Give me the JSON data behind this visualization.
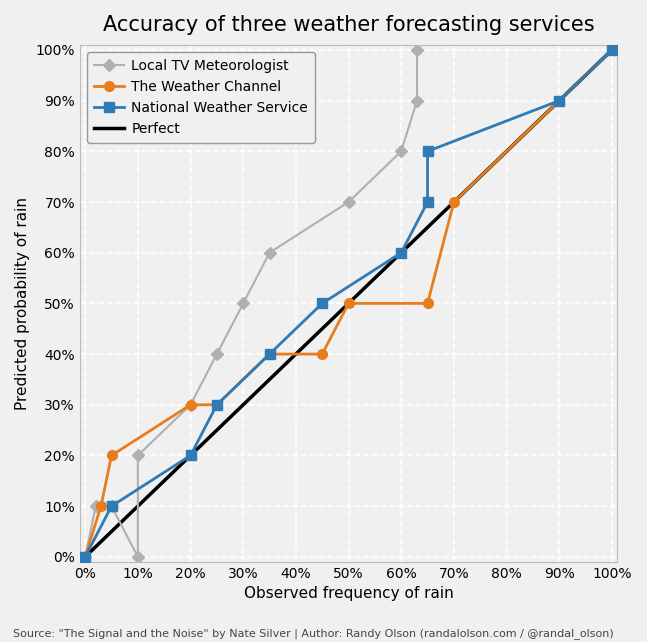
{
  "title": "Accuracy of three weather forecasting services",
  "xlabel": "Observed frequency of rain",
  "ylabel": "Predicted probability of rain",
  "source_text": "Source: \"The Signal and the Noise\" by Nate Silver | Author: Randy Olson (randalolson.com / @randal_olson)",
  "local_tv": {
    "x": [
      0,
      2,
      5,
      10,
      10,
      20,
      25,
      30,
      35,
      50,
      60,
      63,
      63
    ],
    "y": [
      0,
      10,
      10,
      0,
      20,
      30,
      40,
      50,
      60,
      70,
      80,
      90,
      100
    ],
    "color": "#b0b0b0",
    "label": "Local TV Meteorologist",
    "marker": "D",
    "markersize": 6,
    "linewidth": 1.5,
    "zorder": 2
  },
  "weather_channel": {
    "x": [
      0,
      3,
      5,
      20,
      25,
      35,
      45,
      50,
      65,
      70,
      90,
      100
    ],
    "y": [
      0,
      10,
      20,
      30,
      30,
      40,
      40,
      50,
      50,
      70,
      90,
      100
    ],
    "color": "#e87d1e",
    "label": "The Weather Channel",
    "marker": "o",
    "markersize": 7,
    "linewidth": 2,
    "zorder": 3
  },
  "nws": {
    "x": [
      0,
      5,
      20,
      25,
      35,
      45,
      60,
      65,
      65,
      90,
      100
    ],
    "y": [
      0,
      10,
      20,
      30,
      40,
      50,
      60,
      70,
      80,
      90,
      100
    ],
    "color": "#2e7bb5",
    "label": "National Weather Service",
    "marker": "s",
    "markersize": 7,
    "linewidth": 2,
    "zorder": 3
  },
  "perfect": {
    "x": [
      0,
      100
    ],
    "y": [
      0,
      100
    ],
    "color": "#000000",
    "label": "Perfect",
    "linewidth": 2.5,
    "zorder": 1
  },
  "xlim": [
    -1,
    101
  ],
  "ylim": [
    -1,
    101
  ],
  "xticks": [
    0,
    10,
    20,
    30,
    40,
    50,
    60,
    70,
    80,
    90,
    100
  ],
  "yticks": [
    0,
    10,
    20,
    30,
    40,
    50,
    60,
    70,
    80,
    90,
    100
  ],
  "background_color": "#f0f0f0",
  "axes_background": "#f0f0f0",
  "grid_color": "#ffffff",
  "spine_color": "#bbbbbb",
  "title_fontsize": 15,
  "axis_label_fontsize": 11,
  "tick_label_fontsize": 10,
  "legend_fontsize": 10,
  "source_fontsize": 8
}
